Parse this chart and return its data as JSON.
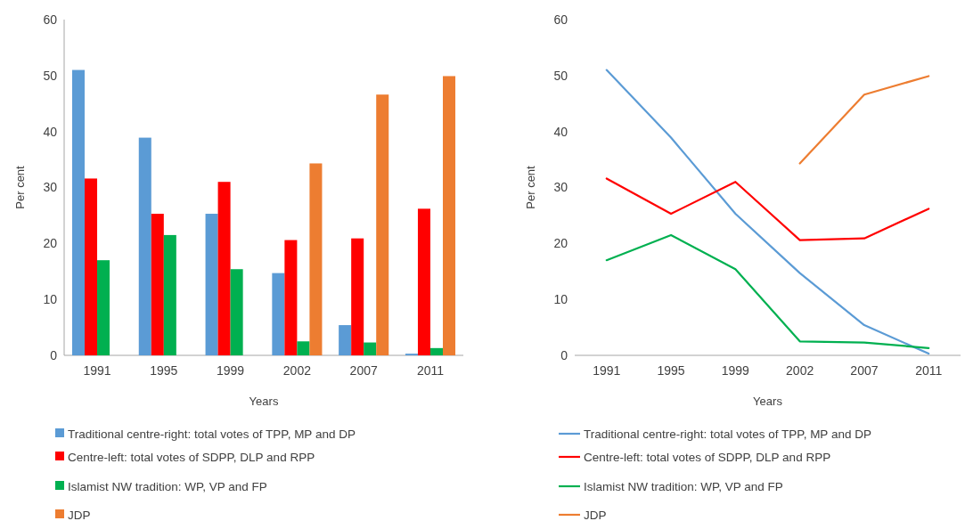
{
  "chart_data": [
    {
      "type": "bar",
      "xlabel": "Years",
      "ylabel": "Per cent",
      "categories": [
        "1991",
        "1995",
        "1999",
        "2002",
        "2007",
        "2011"
      ],
      "ylim": [
        0,
        60
      ],
      "yticks": [
        0,
        10,
        20,
        30,
        40,
        50,
        60
      ],
      "legend": "bottom",
      "series": [
        {
          "name": "Traditional centre-right: total votes of TPP, MP and DP",
          "color": "#5b9bd5",
          "values": [
            51,
            38.9,
            25.3,
            14.7,
            5.4,
            0.3
          ]
        },
        {
          "name": "Centre-left: total votes of SDPP, DLP and RPP",
          "color": "#ff0000",
          "values": [
            31.6,
            25.3,
            31,
            20.6,
            20.9,
            26.2
          ]
        },
        {
          "name": "Islamist NW tradition: WP, VP and FP",
          "color": "#00b050",
          "values": [
            17,
            21.5,
            15.4,
            2.5,
            2.3,
            1.3
          ]
        },
        {
          "name": "JDP",
          "color": "#ed7d31",
          "values": [
            null,
            null,
            null,
            34.3,
            46.6,
            49.9
          ]
        }
      ]
    },
    {
      "type": "line",
      "xlabel": "Years",
      "ylabel": "Per cent",
      "categories": [
        "1991",
        "1995",
        "1999",
        "2002",
        "2007",
        "2011"
      ],
      "ylim": [
        0,
        60
      ],
      "yticks": [
        0,
        10,
        20,
        30,
        40,
        50,
        60
      ],
      "legend": "bottom",
      "series": [
        {
          "name": "Traditional centre-right: total votes of TPP, MP and DP",
          "color": "#5b9bd5",
          "values": [
            51,
            38.9,
            25.3,
            14.7,
            5.4,
            0.3
          ]
        },
        {
          "name": "Centre-left: total votes of SDPP, DLP and RPP",
          "color": "#ff0000",
          "values": [
            31.6,
            25.3,
            31,
            20.6,
            20.9,
            26.2
          ]
        },
        {
          "name": "Islamist NW tradition: WP, VP and FP",
          "color": "#00b050",
          "values": [
            17,
            21.5,
            15.4,
            2.5,
            2.3,
            1.3
          ]
        },
        {
          "name": "JDP",
          "color": "#ed7d31",
          "values": [
            null,
            null,
            null,
            34.3,
            46.6,
            49.9
          ]
        }
      ]
    }
  ]
}
